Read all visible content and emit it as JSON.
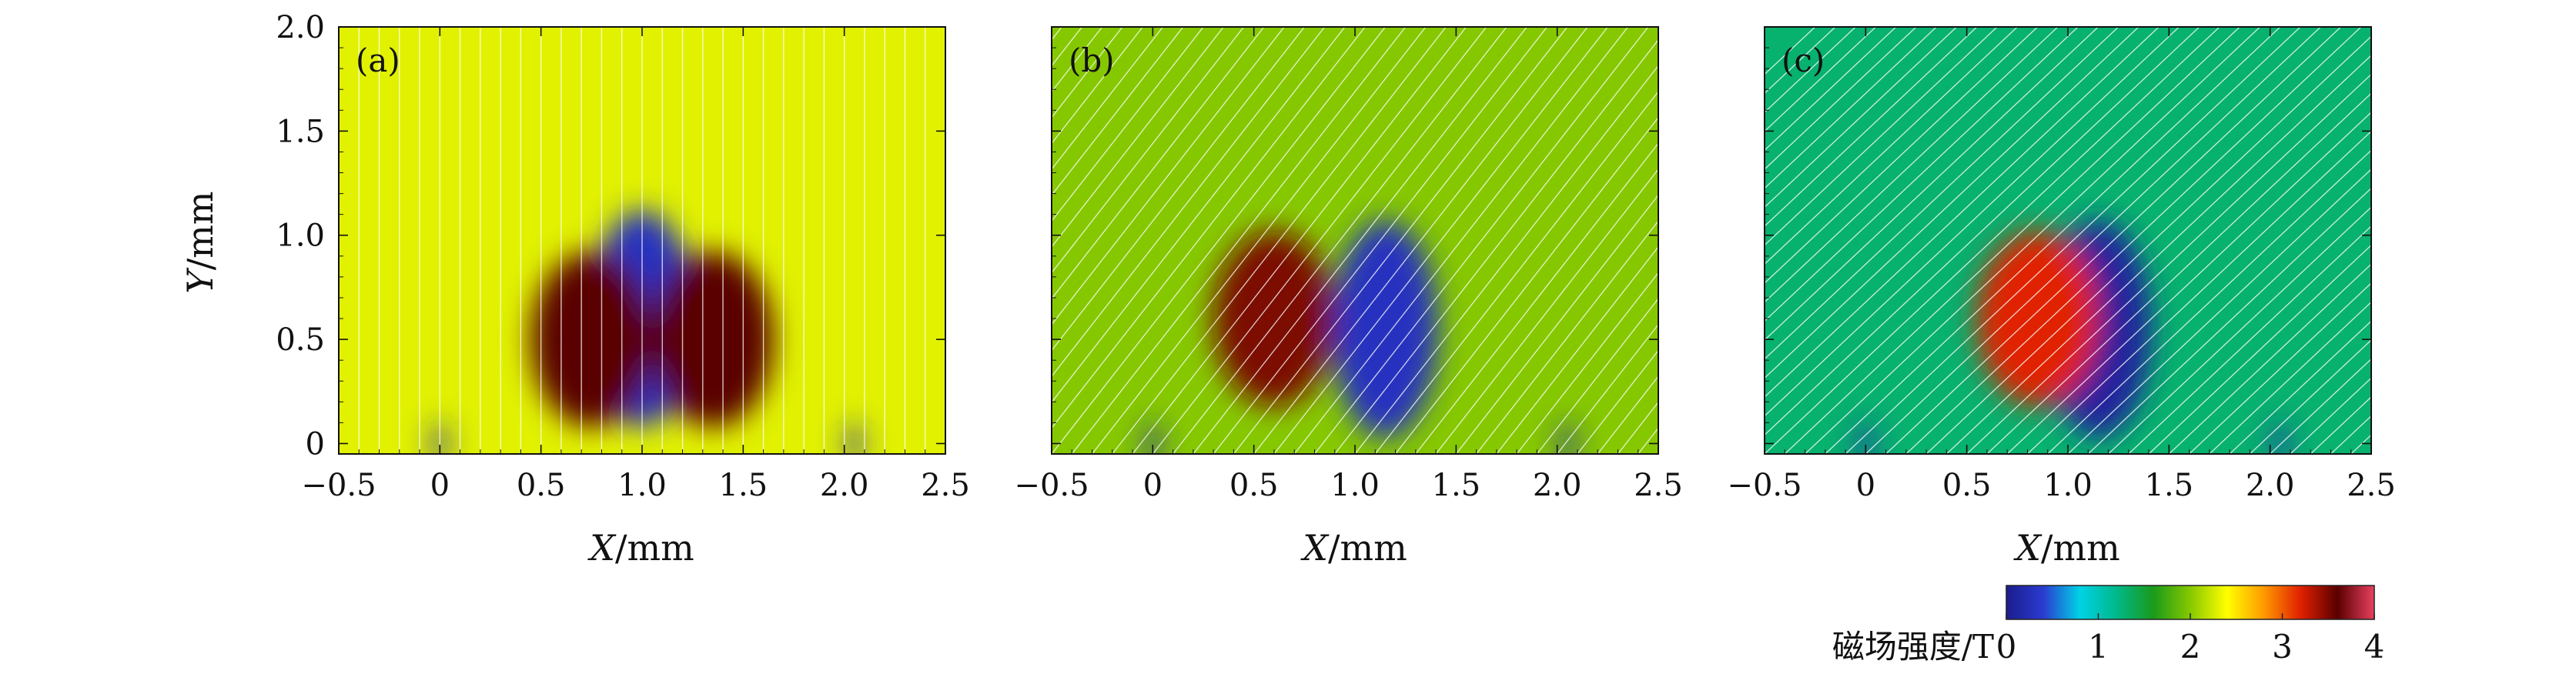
{
  "chart_data": {
    "type": "heatmap",
    "xlabel": "X/mm",
    "ylabel": "Y/mm",
    "xlim": [
      -0.5,
      2.5
    ],
    "ylim": [
      -0.05,
      2.0
    ],
    "xticks": [
      -0.5,
      0,
      0.5,
      1.0,
      1.5,
      2.0,
      2.5
    ],
    "xtick_labels": [
      "−0.5",
      "0",
      "0.5",
      "1.0",
      "1.5",
      "2.0",
      "2.5"
    ],
    "yticks": [
      0,
      0.5,
      1.0,
      1.5,
      2.0
    ],
    "ytick_labels": [
      "0",
      "0.5",
      "1.0",
      "1.5",
      "2.0"
    ],
    "panels": [
      {
        "label": "(a)",
        "background_field_T": 2.3,
        "streamline_tilt": 0,
        "features": [
          {
            "kind": "low-field lobe",
            "center_x": 1.0,
            "center_y": 0.6,
            "value_T": 0.3
          },
          {
            "kind": "high-field ring",
            "center_x": 0.75,
            "center_y": 0.5,
            "value_T": 3.6
          },
          {
            "kind": "high-field ring",
            "center_x": 1.35,
            "center_y": 0.5,
            "value_T": 3.6
          },
          {
            "kind": "low-field spot",
            "center_x": 0.0,
            "center_y": 0.0,
            "value_T": 0.2
          },
          {
            "kind": "low-field spot",
            "center_x": 2.05,
            "center_y": 0.0,
            "value_T": 0.2
          }
        ]
      },
      {
        "label": "(b)",
        "background_field_T": 2.0,
        "streamline_tilt": 0.55,
        "features": [
          {
            "kind": "low-field lobe",
            "center_x": 1.15,
            "center_y": 0.55,
            "value_T": 0.3
          },
          {
            "kind": "high-field region",
            "center_x": 0.6,
            "center_y": 0.6,
            "value_T": 3.5
          },
          {
            "kind": "low-field spot",
            "center_x": 0.0,
            "center_y": 0.0,
            "value_T": 0.2
          },
          {
            "kind": "low-field spot",
            "center_x": 2.05,
            "center_y": 0.0,
            "value_T": 0.2
          }
        ]
      },
      {
        "label": "(c)",
        "background_field_T": 1.3,
        "streamline_tilt": 0.75,
        "features": [
          {
            "kind": "low-field lobe",
            "center_x": 1.15,
            "center_y": 0.55,
            "value_T": 0.1
          },
          {
            "kind": "high-field ring",
            "center_x": 0.85,
            "center_y": 0.6,
            "value_T": 3.2
          },
          {
            "kind": "low-field spot",
            "center_x": 0.0,
            "center_y": 0.0,
            "value_T": 0.2
          },
          {
            "kind": "low-field spot",
            "center_x": 2.05,
            "center_y": 0.0,
            "value_T": 0.2
          }
        ]
      }
    ],
    "colorbar": {
      "label": "磁场强度/T",
      "range": [
        0,
        4
      ],
      "ticks": [
        0,
        1,
        2,
        3,
        4
      ],
      "tick_labels": [
        "0",
        "1",
        "2",
        "3",
        "4"
      ],
      "colors": [
        "#1c1c8c",
        "#2a3bd0",
        "#00d2e6",
        "#00b88a",
        "#1a9a1a",
        "#86c800",
        "#ffff00",
        "#ff9900",
        "#e02000",
        "#5a0000",
        "#e84060"
      ]
    }
  }
}
